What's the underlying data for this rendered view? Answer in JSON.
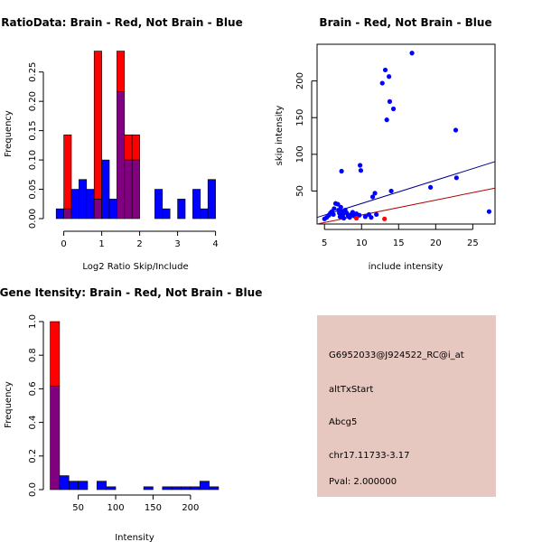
{
  "colors": {
    "red": "#ff0000",
    "blue": "#0000ff",
    "overlap": "#800080",
    "darkred": "#b00000",
    "darkblue": "#00008b",
    "info_bg": "#e6c8c0",
    "pval": "#b00000"
  },
  "chart_data": [
    {
      "id": "ratio_hist",
      "type": "bar",
      "title": "RatioData: Brain - Red, Not Brain - Blue",
      "xlabel": "Log2 Ratio Skip/Include",
      "ylabel": "Frequency",
      "xlim": [
        -0.3,
        4.2
      ],
      "ylim": [
        0,
        0.285
      ],
      "xticks": [
        "0",
        "1",
        "2",
        "3",
        "4"
      ],
      "xtick_values": [
        0,
        1,
        2,
        3,
        4
      ],
      "yticks": [
        "0.00",
        "0.05",
        "0.10",
        "0.15",
        "0.20",
        "0.25"
      ],
      "ytick_values": [
        0,
        0.05,
        0.1,
        0.15,
        0.2,
        0.25
      ],
      "bin_width": 0.2,
      "series": [
        {
          "name": "Brain",
          "color": "red",
          "bins": [
            {
              "x0": 0.0,
              "value": 0.1429
            },
            {
              "x0": 0.8,
              "value": 0.2857
            },
            {
              "x0": 1.4,
              "value": 0.2857
            },
            {
              "x0": 1.6,
              "value": 0.1429
            },
            {
              "x0": 1.8,
              "value": 0.1429
            }
          ]
        },
        {
          "name": "Not Brain",
          "color": "blue",
          "bins": [
            {
              "x0": -0.2,
              "value": 0.0167
            },
            {
              "x0": 0.0,
              "value": 0.0167
            },
            {
              "x0": 0.2,
              "value": 0.05
            },
            {
              "x0": 0.4,
              "value": 0.0667
            },
            {
              "x0": 0.6,
              "value": 0.05
            },
            {
              "x0": 0.8,
              "value": 0.0333
            },
            {
              "x0": 1.0,
              "value": 0.1
            },
            {
              "x0": 1.2,
              "value": 0.0333
            },
            {
              "x0": 1.4,
              "value": 0.2167
            },
            {
              "x0": 1.6,
              "value": 0.1
            },
            {
              "x0": 1.8,
              "value": 0.1
            },
            {
              "x0": 2.4,
              "value": 0.05
            },
            {
              "x0": 2.6,
              "value": 0.0167
            },
            {
              "x0": 3.0,
              "value": 0.0333
            },
            {
              "x0": 3.4,
              "value": 0.05
            },
            {
              "x0": 3.6,
              "value": 0.0167
            },
            {
              "x0": 3.8,
              "value": 0.0667
            }
          ]
        }
      ]
    },
    {
      "id": "scatter",
      "type": "scatter",
      "title": "Brain - Red, Not Brain - Blue",
      "xlabel": "include intensity",
      "ylabel": "skip intensity",
      "xlim": [
        4,
        28
      ],
      "ylim": [
        5,
        250
      ],
      "xticks": [
        "5",
        "10",
        "15",
        "20",
        "25"
      ],
      "xtick_values": [
        5,
        10,
        15,
        20,
        25
      ],
      "yticks": [
        "50",
        "100",
        "150",
        "200"
      ],
      "ytick_values": [
        50,
        100,
        150,
        200
      ],
      "series": [
        {
          "name": "Not Brain",
          "color": "blue",
          "points": [
            [
              5.0,
              12
            ],
            [
              5.3,
              14
            ],
            [
              5.6,
              17
            ],
            [
              5.8,
              20
            ],
            [
              6.0,
              22
            ],
            [
              6.2,
              18
            ],
            [
              6.3,
              26
            ],
            [
              6.5,
              33
            ],
            [
              6.8,
              32
            ],
            [
              6.9,
              24
            ],
            [
              7.0,
              20
            ],
            [
              7.1,
              15
            ],
            [
              7.2,
              28
            ],
            [
              7.4,
              22
            ],
            [
              7.5,
              18
            ],
            [
              7.6,
              13
            ],
            [
              7.8,
              24
            ],
            [
              8.0,
              20
            ],
            [
              8.2,
              16
            ],
            [
              8.4,
              14
            ],
            [
              8.6,
              18
            ],
            [
              8.8,
              21
            ],
            [
              9.0,
              16
            ],
            [
              9.3,
              19
            ],
            [
              9.7,
              17
            ],
            [
              7.3,
              77
            ],
            [
              9.8,
              85
            ],
            [
              9.9,
              78
            ],
            [
              10.5,
              15
            ],
            [
              11.0,
              18
            ],
            [
              11.3,
              14
            ],
            [
              11.5,
              42
            ],
            [
              11.8,
              47
            ],
            [
              12.0,
              18
            ],
            [
              12.8,
              197
            ],
            [
              13.2,
              215
            ],
            [
              13.4,
              147
            ],
            [
              13.7,
              206
            ],
            [
              13.8,
              172
            ],
            [
              14.0,
              50
            ],
            [
              14.3,
              162
            ],
            [
              16.8,
              238
            ],
            [
              19.3,
              55
            ],
            [
              22.7,
              133
            ],
            [
              22.8,
              68
            ],
            [
              27.2,
              22
            ]
          ]
        },
        {
          "name": "Brain",
          "color": "red",
          "points": [
            [
              9.3,
              13
            ],
            [
              13.1,
              12
            ]
          ]
        }
      ],
      "fit_lines": [
        {
          "name": "Not Brain fit",
          "color": "darkblue",
          "x": [
            4,
            28
          ],
          "y": [
            14,
            90
          ]
        },
        {
          "name": "Brain fit",
          "color": "darkred",
          "x": [
            4,
            28
          ],
          "y": [
            5,
            54
          ]
        }
      ]
    },
    {
      "id": "intensity_hist",
      "type": "bar",
      "title": "Gene Itensity: Brain - Red, Not Brain - Blue",
      "xlabel": "Intensity",
      "ylabel": "Frequency",
      "xlim": [
        7,
        240
      ],
      "ylim": [
        0,
        1.0
      ],
      "xticks": [
        "50",
        "100",
        "150",
        "200"
      ],
      "xtick_values": [
        50,
        100,
        150,
        200
      ],
      "yticks": [
        "0.0",
        "0.2",
        "0.4",
        "0.6",
        "0.8",
        "1.0"
      ],
      "ytick_values": [
        0,
        0.2,
        0.4,
        0.6,
        0.8,
        1.0
      ],
      "bin_width": 12.5,
      "series": [
        {
          "name": "Brain",
          "color": "red",
          "bins": [
            {
              "x0": 12.5,
              "value": 1.0
            }
          ]
        },
        {
          "name": "Not Brain",
          "color": "blue",
          "bins": [
            {
              "x0": 12.5,
              "value": 0.617
            },
            {
              "x0": 25.0,
              "value": 0.083
            },
            {
              "x0": 37.5,
              "value": 0.05
            },
            {
              "x0": 50.0,
              "value": 0.05
            },
            {
              "x0": 75.0,
              "value": 0.05
            },
            {
              "x0": 87.5,
              "value": 0.017
            },
            {
              "x0": 137.5,
              "value": 0.017
            },
            {
              "x0": 162.5,
              "value": 0.017
            },
            {
              "x0": 175.0,
              "value": 0.017
            },
            {
              "x0": 187.5,
              "value": 0.017
            },
            {
              "x0": 200.0,
              "value": 0.017
            },
            {
              "x0": 212.5,
              "value": 0.05
            },
            {
              "x0": 225.0,
              "value": 0.017
            }
          ]
        }
      ]
    }
  ],
  "info_box": {
    "probe_id": "G6952033@J924522_RC@i_at",
    "event_type": "altTxStart",
    "gene": "Abcg5",
    "location": "chr17.11733-3.17",
    "pval": "Pval: 2.000000"
  }
}
